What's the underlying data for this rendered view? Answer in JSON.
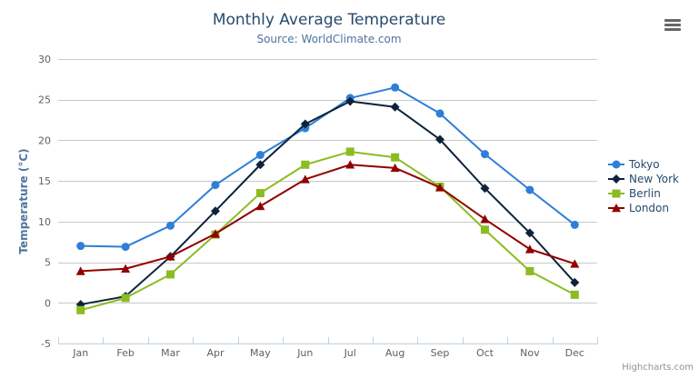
{
  "header": {
    "title": "Monthly Average Temperature",
    "subtitle": "Source: WorldClimate.com"
  },
  "chart_data": {
    "type": "line",
    "title": "Monthly Average Temperature",
    "subtitle": "Source: WorldClimate.com",
    "categories": [
      "Jan",
      "Feb",
      "Mar",
      "Apr",
      "May",
      "Jun",
      "Jul",
      "Aug",
      "Sep",
      "Oct",
      "Nov",
      "Dec"
    ],
    "series": [
      {
        "name": "Tokyo",
        "color": "#2f7ed8",
        "marker": "circle",
        "values": [
          7.0,
          6.9,
          9.5,
          14.5,
          18.2,
          21.5,
          25.2,
          26.5,
          23.3,
          18.3,
          13.9,
          9.6
        ]
      },
      {
        "name": "New York",
        "color": "#0d233a",
        "marker": "diamond",
        "values": [
          -0.2,
          0.8,
          5.7,
          11.3,
          17.0,
          22.0,
          24.8,
          24.1,
          20.1,
          14.1,
          8.6,
          2.5
        ]
      },
      {
        "name": "Berlin",
        "color": "#8bbc21",
        "marker": "square",
        "values": [
          -0.9,
          0.6,
          3.5,
          8.4,
          13.5,
          17.0,
          18.6,
          17.9,
          14.3,
          9.0,
          3.9,
          1.0
        ]
      },
      {
        "name": "London",
        "color": "#910000",
        "marker": "triangle",
        "values": [
          3.9,
          4.2,
          5.7,
          8.5,
          11.9,
          15.2,
          17.0,
          16.6,
          14.2,
          10.3,
          6.6,
          4.8
        ]
      }
    ],
    "xlabel": "",
    "ylabel": "Temperature (°C)",
    "ylim": [
      -5,
      30
    ],
    "yticks": [
      -5,
      0,
      5,
      10,
      15,
      20,
      25,
      30
    ],
    "grid": true,
    "legend_position": "right",
    "credits": "Highcharts.com"
  },
  "colors": {
    "title": "#274b6d",
    "subtitle": "#4d759e",
    "axis_title": "#4d759e",
    "axis_labels": "#606060",
    "grid_line": "#c9c9c9",
    "axis_line": "#c0d0e0",
    "legend_text": "#274b6d",
    "credits_text": "#909090",
    "menu_icon": "#666666"
  },
  "icons": {
    "context_menu": "hamburger"
  }
}
